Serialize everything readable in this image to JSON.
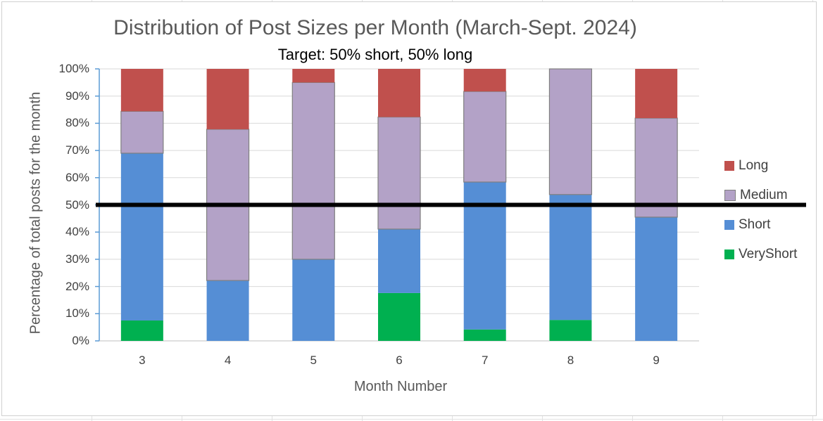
{
  "chart_data": {
    "type": "bar",
    "stacked": true,
    "title": "Distribution of Post Sizes per Month (March-Sept. 2024)",
    "subtitle": "Target: 50% short, 50% long",
    "xlabel": "Month Number",
    "ylabel": "Percentage of total posts for the month",
    "categories": [
      "3",
      "4",
      "5",
      "6",
      "7",
      "8",
      "9"
    ],
    "yticks": [
      "0%",
      "10%",
      "20%",
      "30%",
      "40%",
      "50%",
      "60%",
      "70%",
      "80%",
      "90%",
      "100%"
    ],
    "ylim": [
      0,
      100
    ],
    "target_line": 50,
    "series": [
      {
        "name": "VeryShort",
        "color": "#00b050",
        "values": [
          7.5,
          0,
          0,
          17.6,
          4.2,
          7.7,
          0
        ]
      },
      {
        "name": "Short",
        "color": "#558ed5",
        "values": [
          61.5,
          22.2,
          30.0,
          23.5,
          54.2,
          46.1,
          45.5
        ]
      },
      {
        "name": "Medium",
        "color": "#b3a2c7",
        "values": [
          15.4,
          55.6,
          65.0,
          41.2,
          33.3,
          46.2,
          36.4
        ]
      },
      {
        "name": "Long",
        "color": "#c0504d",
        "values": [
          15.6,
          22.2,
          5.0,
          17.7,
          8.3,
          0,
          18.1
        ]
      }
    ],
    "legend_order": [
      "Long",
      "Medium",
      "Short",
      "VeryShort"
    ],
    "legend_position": "right",
    "grid": true
  }
}
